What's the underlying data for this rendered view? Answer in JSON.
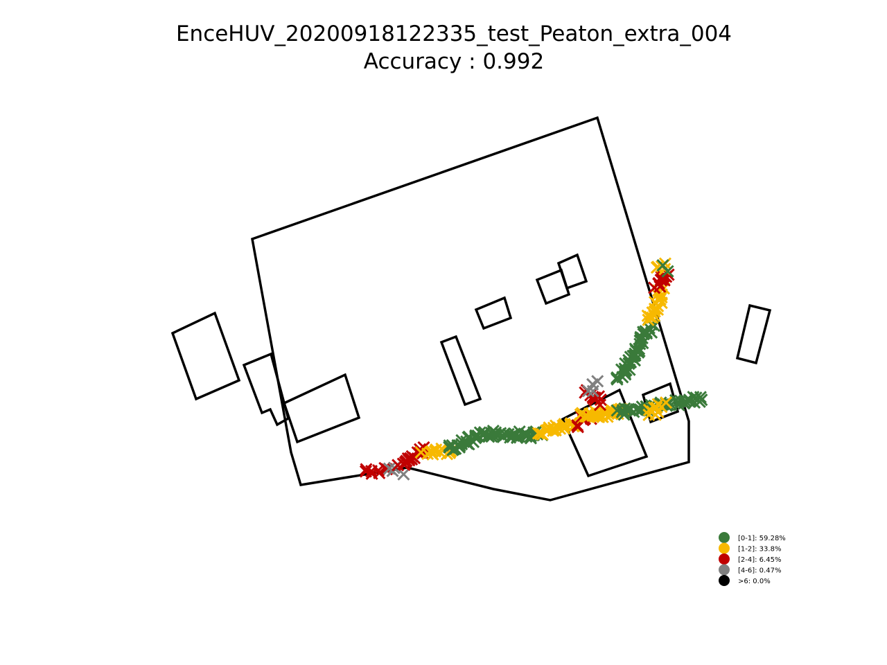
{
  "chart_data": {
    "type": "scatter",
    "title": "EnceHUV_20200918122335_test_Peaton_extra_004",
    "subtitle": "Accuracy : 0.992",
    "colors": {
      "0-1": "#3a7a3a",
      "1-2": "#f7b900",
      "2-4": "#c00000",
      "4-6": "#808080",
      "6+": "#000000"
    },
    "legend": {
      "placement": "bottom-right",
      "entries": [
        {
          "key": "0-1",
          "label": "[0-1]: 59.28%",
          "value": 59.28
        },
        {
          "key": "1-2",
          "label": "[1-2]: 33.8%",
          "value": 33.8
        },
        {
          "key": "2-4",
          "label": "[2-4]: 6.45%",
          "value": 6.45
        },
        {
          "key": "4-6",
          "label": "[4-6]: 0.47%",
          "value": 0.47
        },
        {
          "key": "6+",
          "label": ">6: 0.0%",
          "value": 0.0
        }
      ]
    },
    "axes": "off",
    "grid": false,
    "marker": "x",
    "trajectory_segments": [
      {
        "cat": "2-4",
        "from": [
          528,
          680
        ],
        "to": [
          558,
          680
        ],
        "n": 8
      },
      {
        "cat": "4-6",
        "from": [
          560,
          680
        ],
        "to": [
          578,
          680
        ],
        "n": 4
      },
      {
        "cat": "2-4",
        "from": [
          578,
          672
        ],
        "to": [
          612,
          650
        ],
        "n": 16
      },
      {
        "cat": "1-2",
        "from": [
          612,
          654
        ],
        "to": [
          648,
          650
        ],
        "n": 12
      },
      {
        "cat": "0-1",
        "from": [
          648,
          648
        ],
        "to": [
          700,
          628
        ],
        "n": 28
      },
      {
        "cat": "0-1",
        "from": [
          700,
          626
        ],
        "to": [
          780,
          628
        ],
        "n": 36
      },
      {
        "cat": "1-2",
        "from": [
          780,
          624
        ],
        "to": [
          830,
          614
        ],
        "n": 22
      },
      {
        "cat": "2-4",
        "from": [
          830,
          612
        ],
        "to": [
          852,
          600
        ],
        "n": 6
      },
      {
        "cat": "1-2",
        "from": [
          840,
          600
        ],
        "to": [
          900,
          595
        ],
        "n": 34
      },
      {
        "cat": "2-4",
        "from": [
          845,
          565
        ],
        "to": [
          868,
          580
        ],
        "n": 10
      },
      {
        "cat": "4-6",
        "from": [
          848,
          568
        ],
        "to": [
          866,
          552
        ],
        "n": 4
      },
      {
        "cat": "0-1",
        "from": [
          895,
          595
        ],
        "to": [
          1015,
          575
        ],
        "n": 46
      },
      {
        "cat": "1-2",
        "from": [
          935,
          600
        ],
        "to": [
          960,
          585
        ],
        "n": 10
      },
      {
        "cat": "0-1",
        "from": [
          893,
          548
        ],
        "to": [
          940,
          470
        ],
        "n": 44
      },
      {
        "cat": "1-2",
        "from": [
          938,
          462
        ],
        "to": [
          955,
          420
        ],
        "n": 18
      },
      {
        "cat": "2-4",
        "from": [
          948,
          412
        ],
        "to": [
          962,
          398
        ],
        "n": 12
      },
      {
        "cat": "1-2",
        "from": [
          950,
          390
        ],
        "to": [
          962,
          384
        ],
        "n": 5
      },
      {
        "cat": "0-1",
        "from": [
          958,
          384
        ],
        "to": [
          962,
          388
        ],
        "n": 2
      }
    ]
  }
}
